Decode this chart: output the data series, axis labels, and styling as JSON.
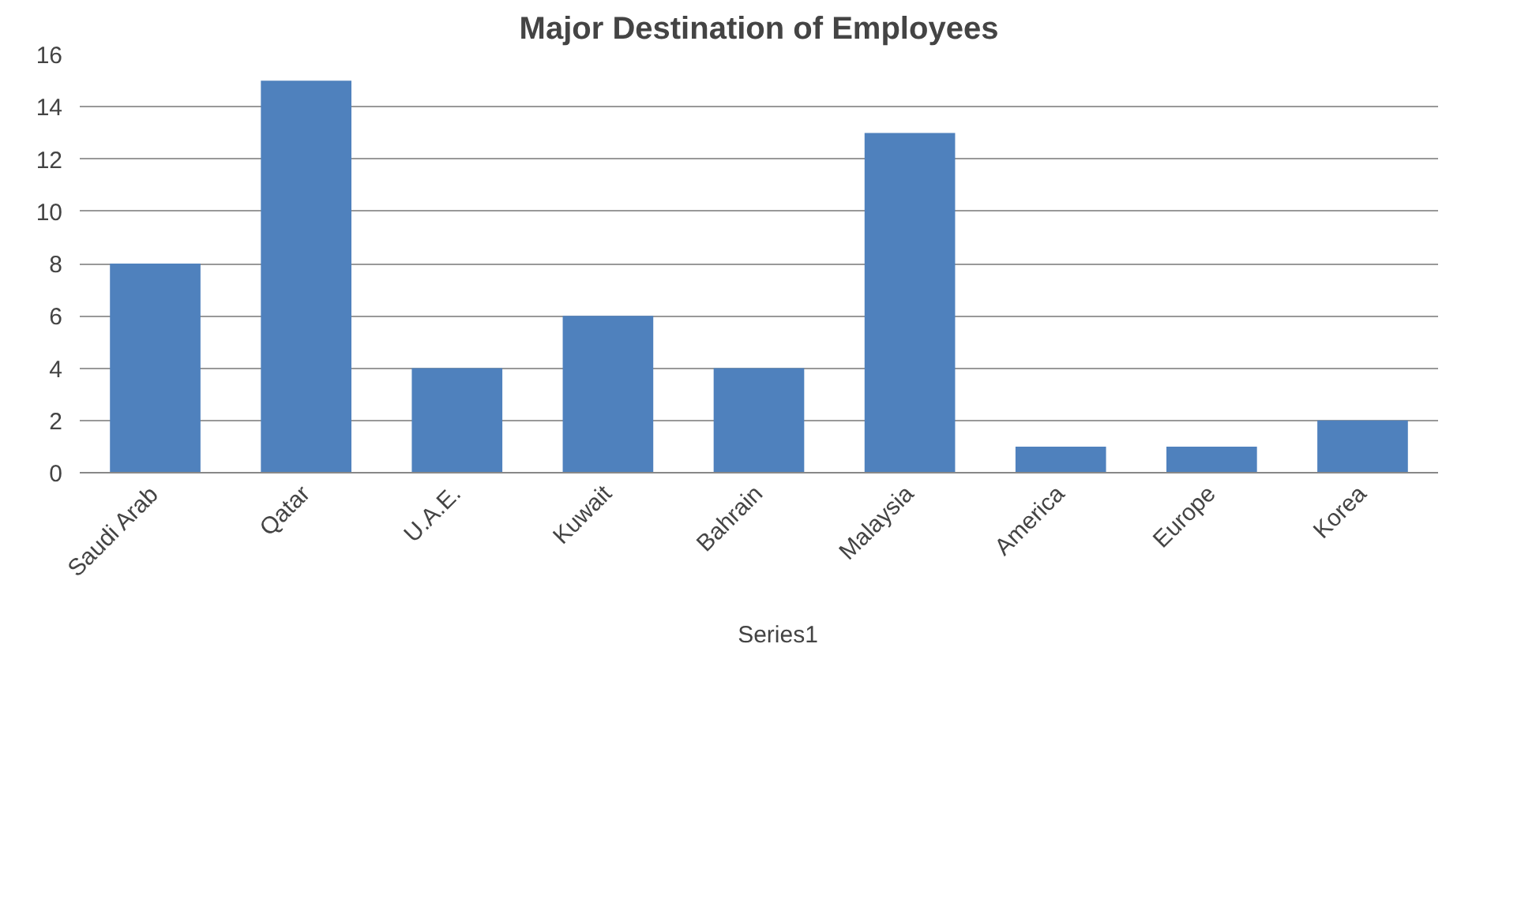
{
  "chart_data": {
    "type": "bar",
    "title": "Major Destination of Employees",
    "categories": [
      "Saudi Arab",
      "Qatar",
      "U.A.E.",
      "Kuwait",
      "Bahrain",
      "Malaysia",
      "America",
      "Europe",
      "Korea"
    ],
    "series": [
      {
        "name": "Series1",
        "color": "#4f81bd",
        "values": [
          8,
          15,
          4,
          6,
          4,
          13,
          1,
          1,
          2
        ]
      }
    ],
    "ylim": [
      0,
      16
    ],
    "yticks": [
      0,
      2,
      4,
      6,
      8,
      10,
      12,
      14,
      16
    ],
    "grid": "y",
    "legend": "bottom"
  }
}
